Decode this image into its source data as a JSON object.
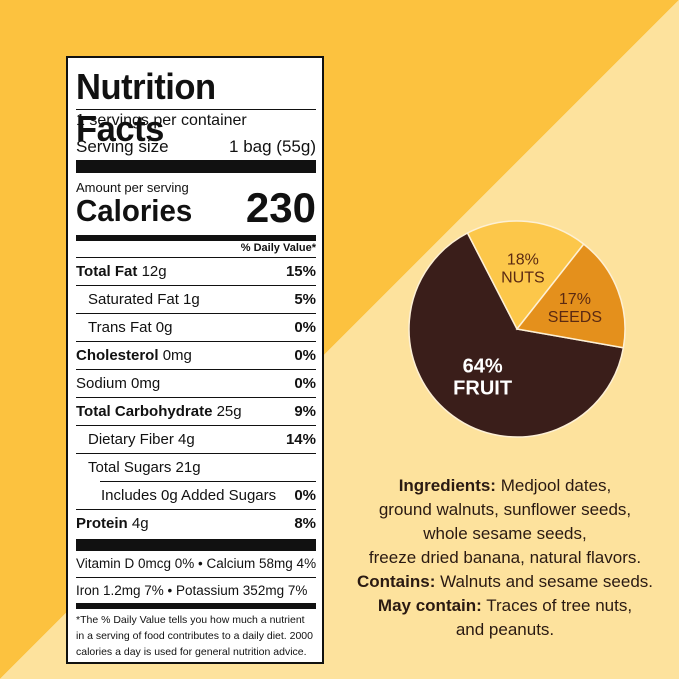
{
  "colors": {
    "bg_left": "#fcc23f",
    "bg_right": "#fde29d",
    "fruit": "#3a1e1a",
    "nuts": "#fcc74a",
    "seeds": "#e4901c",
    "fruit_text": "#ffffff",
    "nuts_text": "#5b2a12",
    "seeds_text": "#5b2a12"
  },
  "nutrition": {
    "title": "Nutrition Facts",
    "servings_per_container": "1 servings per container",
    "serving_size_label": "Serving size",
    "serving_size_value": "1 bag (55g)",
    "amount_per_serving": "Amount per serving",
    "calories_label": "Calories",
    "calories_value": "230",
    "daily_value_header": "% Daily Value*",
    "rows": [
      {
        "label": "Total Fat",
        "amount": "12g",
        "dv": "15%"
      },
      {
        "label": "Saturated Fat 1g",
        "amount": "",
        "dv": "5%"
      },
      {
        "label": "Trans Fat 0g",
        "amount": "",
        "dv": ""
      },
      {
        "label": "Cholesterol",
        "amount": "0mg",
        "dv": "0%"
      },
      {
        "label": "Sodium 0mg",
        "amount": "",
        "dv": "0%"
      },
      {
        "label": "Total Carbohydrate",
        "amount": "25g",
        "dv": "9%"
      },
      {
        "label": "Dietary Fiber 4g",
        "amount": "",
        "dv": "14%"
      },
      {
        "label": "Total Sugars 21g",
        "amount": "",
        "dv": ""
      },
      {
        "label": "Includes 0g Added Sugars",
        "amount": "",
        "dv": "0%"
      },
      {
        "label": "Protein",
        "amount": "4g",
        "dv": "8%"
      }
    ],
    "trans_fat_dv": "0%",
    "vitamin_line_1": "Vitamin D 0mcg 0%  •  Calcium 58mg 4%",
    "vitamin_line_2": "Iron 1.2mg 7%  •  Potassium 352mg 7%",
    "footnote_1": "*The % Daily Value tells you how much a nutrient",
    "footnote_2": "in a serving of food contributes to a daily diet. 2000",
    "footnote_3": "calories a day is used for general nutrition advice."
  },
  "chart_data": {
    "type": "pie",
    "slices": [
      {
        "name": "FRUIT",
        "value": 64,
        "label": "64%"
      },
      {
        "name": "NUTS",
        "value": 18,
        "label": "18%"
      },
      {
        "name": "SEEDS",
        "value": 17,
        "label": "17%"
      }
    ]
  },
  "ingredients": {
    "ingredients_heading": "Ingredients:",
    "ingredients_line_1": "Medjool dates,",
    "ingredients_line_2": "ground walnuts, sunflower seeds,",
    "ingredients_line_3": "whole sesame seeds,",
    "ingredients_line_4": "freeze dried banana, natural flavors.",
    "contains_heading": "Contains:",
    "contains_text": "Walnuts and sesame seeds.",
    "may_contain_heading": "May contain:",
    "may_contain_line_1": "Traces of tree nuts,",
    "may_contain_line_2": "and peanuts."
  }
}
